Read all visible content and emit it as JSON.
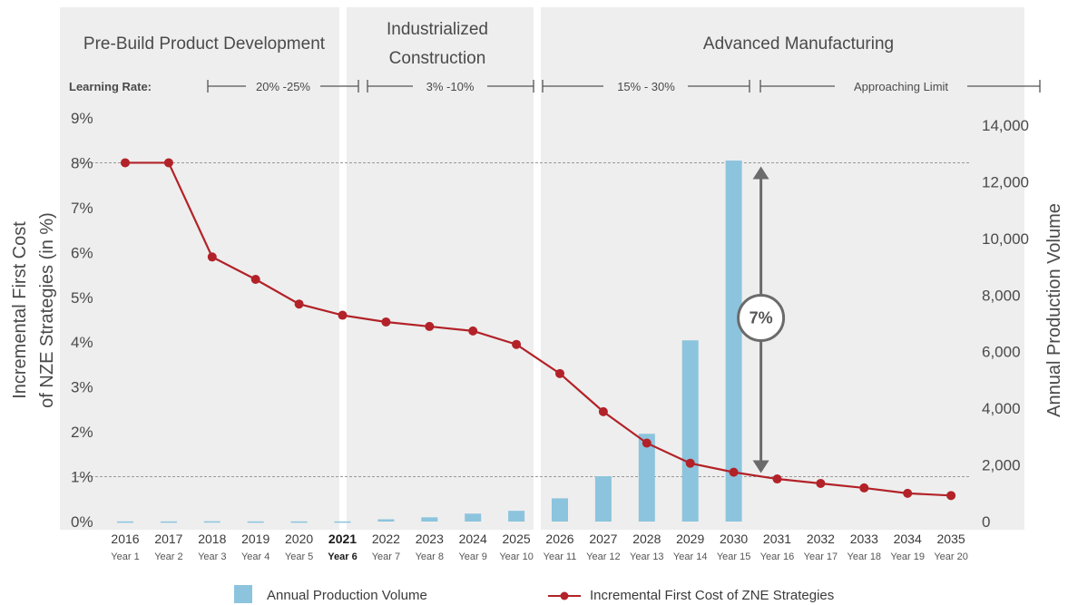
{
  "chart_data": {
    "type": "bar+line",
    "categories": [
      "2016",
      "2017",
      "2018",
      "2019",
      "2020",
      "2021",
      "2022",
      "2023",
      "2024",
      "2025",
      "2026",
      "2027",
      "2028",
      "2029",
      "2030",
      "2031",
      "2032",
      "2033",
      "2034",
      "2035"
    ],
    "sub_labels": [
      "Year 1",
      "Year 2",
      "Year 3",
      "Year 4",
      "Year 5",
      "Year 6",
      "Year 7",
      "Year 8",
      "Year 9",
      "Year 10",
      "Year 11",
      "Year 12",
      "Year 13",
      "Year 14",
      "Year 15",
      "Year 16",
      "Year 17",
      "Year 18",
      "Year 19",
      "Year 20"
    ],
    "highlight_index": 5,
    "series": [
      {
        "name": "Annual Production Volume",
        "type": "bar",
        "axis": "right",
        "color": "#8cc4dd",
        "values": [
          5,
          5,
          10,
          5,
          5,
          5,
          80,
          150,
          280,
          380,
          820,
          1600,
          3100,
          6400,
          12750,
          0,
          0,
          0,
          0,
          0
        ]
      },
      {
        "name": "Incremental First Cost of ZNE Strategies",
        "type": "line",
        "axis": "left",
        "color": "#b22228",
        "values": [
          8.0,
          8.0,
          5.9,
          5.4,
          4.85,
          4.6,
          4.45,
          4.35,
          4.25,
          3.95,
          3.3,
          2.45,
          1.75,
          1.3,
          1.1,
          0.95,
          0.85,
          0.75,
          0.63,
          0.58
        ]
      }
    ],
    "y_left": {
      "label_line1": "Incremental First Cost",
      "label_line2": "of NZE Strategies (in %)",
      "ticks": [
        "0%",
        "1%",
        "2%",
        "3%",
        "4%",
        "5%",
        "6%",
        "7%",
        "8%",
        "9%"
      ],
      "min": 0,
      "max": 9
    },
    "y_right": {
      "label": "Annual Production Volume",
      "ticks": [
        "0",
        "2,000",
        "4,000",
        "6,000",
        "8,000",
        "10,000",
        "12,000",
        "14,000"
      ],
      "min": 0,
      "max": 14000
    },
    "reference_lines": [
      8,
      1
    ],
    "annotation": {
      "text": "7%",
      "from": 8,
      "to": 1
    },
    "phases": [
      {
        "title": "Pre-Build Product Development",
        "start": 0,
        "end": 5
      },
      {
        "title_line1": "Industrialized",
        "title_line2": "Construction",
        "start": 5,
        "end": 10
      },
      {
        "title": "Advanced Manufacturing",
        "start": 10,
        "end": 20
      }
    ],
    "learning_rate": {
      "label": "Learning Rate:",
      "ranges": [
        "20% -25%",
        "3% -10%",
        "15% - 30%",
        "Approaching Limit"
      ]
    },
    "legend": [
      "Annual Production Volume",
      "Incremental First Cost of ZNE Strategies"
    ]
  }
}
